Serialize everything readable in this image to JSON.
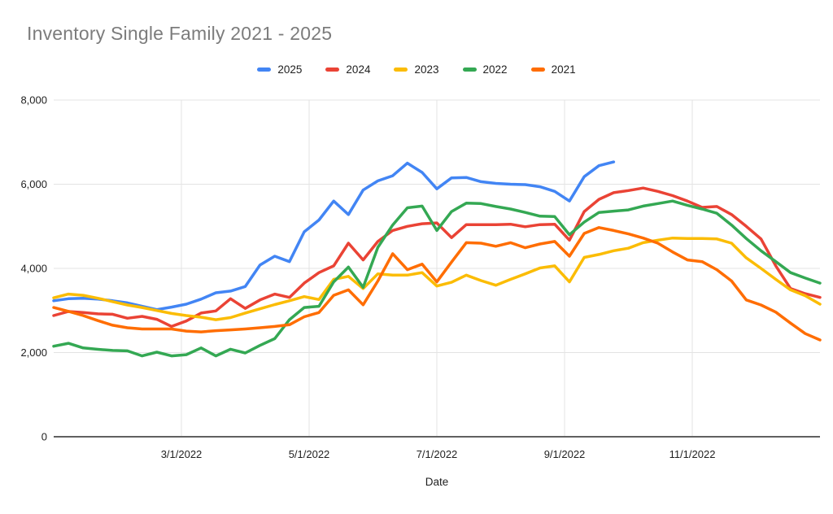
{
  "title": "Inventory Single Family 2021 - 2025",
  "legend": [
    {
      "label": "2025",
      "color": "#4285F4"
    },
    {
      "label": "2024",
      "color": "#EA4335"
    },
    {
      "label": "2023",
      "color": "#FBBC04"
    },
    {
      "label": "2022",
      "color": "#34A853"
    },
    {
      "label": "2021",
      "color": "#FF6D01"
    }
  ],
  "chart_data": {
    "type": "line",
    "title": "Inventory Single Family 2021 - 2025",
    "xlabel": "Date",
    "ylabel": "",
    "ylim": [
      0,
      8000
    ],
    "grid": true,
    "legend_position": "top",
    "y_ticks": [
      0,
      2000,
      4000,
      6000,
      8000
    ],
    "y_tick_labels": [
      "0",
      "2,000",
      "4,000",
      "6,000",
      "8,000"
    ],
    "x_tick_labels": [
      "3/1/2022",
      "5/1/2022",
      "7/1/2022",
      "9/1/2022",
      "11/1/2022"
    ],
    "x": [
      "1/1/2022",
      "1/8/2022",
      "1/15/2022",
      "1/22/2022",
      "1/29/2022",
      "2/5/2022",
      "2/12/2022",
      "2/19/2022",
      "2/26/2022",
      "3/5/2022",
      "3/12/2022",
      "3/19/2022",
      "3/26/2022",
      "4/2/2022",
      "4/9/2022",
      "4/16/2022",
      "4/23/2022",
      "4/30/2022",
      "5/7/2022",
      "5/14/2022",
      "5/21/2022",
      "5/28/2022",
      "6/4/2022",
      "6/11/2022",
      "6/18/2022",
      "6/25/2022",
      "7/2/2022",
      "7/9/2022",
      "7/16/2022",
      "7/23/2022",
      "7/30/2022",
      "8/6/2022",
      "8/13/2022",
      "8/20/2022",
      "8/27/2022",
      "9/3/2022",
      "9/10/2022",
      "9/17/2022",
      "9/24/2022",
      "10/1/2022",
      "10/8/2022",
      "10/15/2022",
      "10/22/2022",
      "10/29/2022",
      "11/5/2022",
      "11/12/2022",
      "11/19/2022",
      "11/26/2022",
      "12/3/2022",
      "12/10/2022",
      "12/17/2022",
      "12/24/2022",
      "12/31/2022"
    ],
    "series": [
      {
        "name": "2025",
        "color": "#4285F4",
        "values": [
          3230,
          3280,
          3290,
          3270,
          3230,
          3180,
          3100,
          3020,
          3080,
          3150,
          3270,
          3420,
          3460,
          3570,
          4080,
          4290,
          4160,
          4870,
          5150,
          5600,
          5280,
          5860,
          6080,
          6200,
          6500,
          6280,
          5890,
          6150,
          6160,
          6060,
          6020,
          6000,
          5990,
          5940,
          5830,
          5600,
          6180,
          6440,
          6530
        ]
      },
      {
        "name": "2024",
        "color": "#EA4335",
        "values": [
          2880,
          2975,
          2950,
          2920,
          2910,
          2815,
          2860,
          2790,
          2620,
          2750,
          2940,
          2990,
          3280,
          3050,
          3250,
          3390,
          3310,
          3650,
          3900,
          4060,
          4600,
          4200,
          4640,
          4900,
          5000,
          5060,
          5080,
          4730,
          5040,
          5040,
          5040,
          5050,
          4990,
          5040,
          5050,
          4670,
          5350,
          5640,
          5800,
          5850,
          5910,
          5830,
          5730,
          5600,
          5450,
          5470,
          5280,
          5000,
          4700,
          4060,
          3520,
          3400,
          3310
        ]
      },
      {
        "name": "2023",
        "color": "#FBBC04",
        "values": [
          3300,
          3390,
          3360,
          3290,
          3210,
          3130,
          3070,
          3000,
          2930,
          2880,
          2840,
          2780,
          2830,
          2940,
          3040,
          3140,
          3230,
          3330,
          3260,
          3740,
          3810,
          3520,
          3870,
          3840,
          3840,
          3900,
          3580,
          3670,
          3840,
          3710,
          3600,
          3740,
          3870,
          4010,
          4060,
          3680,
          4260,
          4330,
          4420,
          4480,
          4610,
          4670,
          4720,
          4710,
          4710,
          4700,
          4600,
          4250,
          4000,
          3740,
          3490,
          3350,
          3150
        ]
      },
      {
        "name": "2022",
        "color": "#34A853",
        "values": [
          2150,
          2220,
          2110,
          2077,
          2050,
          2040,
          1920,
          2010,
          1920,
          1950,
          2110,
          1920,
          2080,
          1990,
          2170,
          2330,
          2780,
          3070,
          3100,
          3680,
          4030,
          3550,
          4500,
          5030,
          5440,
          5480,
          4900,
          5350,
          5550,
          5540,
          5470,
          5410,
          5330,
          5240,
          5230,
          4800,
          5100,
          5330,
          5360,
          5390,
          5480,
          5540,
          5600,
          5500,
          5410,
          5310,
          5030,
          4710,
          4420,
          4160,
          3900,
          3770,
          3650
        ]
      },
      {
        "name": "2021",
        "color": "#FF6D01",
        "values": [
          3070,
          2980,
          2880,
          2760,
          2650,
          2590,
          2560,
          2560,
          2560,
          2510,
          2490,
          2520,
          2540,
          2560,
          2590,
          2620,
          2660,
          2850,
          2950,
          3360,
          3490,
          3135,
          3700,
          4350,
          3970,
          4100,
          3680,
          4150,
          4610,
          4600,
          4525,
          4610,
          4490,
          4580,
          4640,
          4290,
          4830,
          4970,
          4900,
          4820,
          4720,
          4600,
          4390,
          4200,
          4160,
          3970,
          3700,
          3250,
          3130,
          2960,
          2700,
          2450,
          2300
        ]
      }
    ],
    "colors": {
      "grid": "#e3e3e3",
      "axis": "#616161",
      "title_text": "#7c7c7c",
      "tick_text": "#1f1f1f"
    }
  }
}
